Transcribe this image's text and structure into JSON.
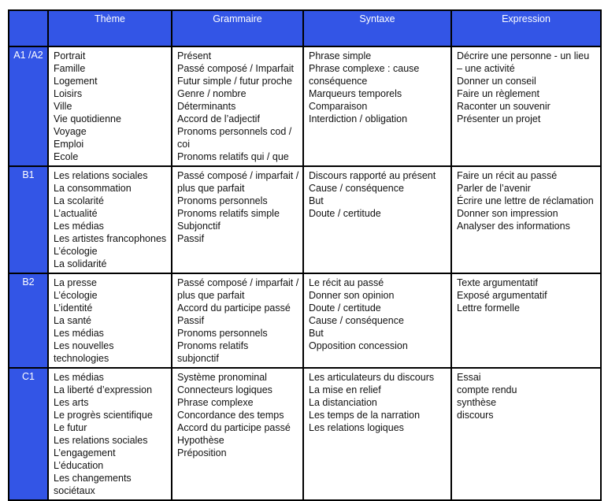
{
  "colors": {
    "accent_blue": "#3355e6",
    "border": "#000000",
    "header_text": "#ffffff",
    "body_text": "#111111"
  },
  "table": {
    "headers": {
      "level": "",
      "theme": "Thème",
      "grammaire": "Grammaire",
      "syntaxe": "Syntaxe",
      "expression": "Expression"
    },
    "rows": [
      {
        "level": "A1 /A2",
        "theme": [
          "Portrait",
          "Famille",
          "Logement",
          "Loisirs",
          "Ville",
          "Vie quotidienne",
          "Voyage",
          "Emploi",
          "Ecole"
        ],
        "grammaire": [
          "Présent",
          "Passé composé / Imparfait",
          "Futur simple / futur proche",
          "Genre / nombre",
          "Déterminants",
          "Accord de l’adjectif",
          "Pronoms personnels cod / coi",
          "Pronoms relatifs qui / que"
        ],
        "syntaxe": [
          "Phrase simple",
          "Phrase complexe : cause conséquence",
          "Marqueurs temporels",
          "Comparaison",
          "Interdiction / obligation"
        ],
        "expression": [
          "Décrire une personne  - un lieu – une activité",
          "Donner un conseil",
          "Faire un règlement",
          "Raconter un souvenir",
          "Présenter un projet"
        ]
      },
      {
        "level": "B1",
        "theme": [
          "Les relations sociales",
          "La consommation",
          "La scolarité",
          "L’actualité",
          "Les médias",
          "Les artistes francophones",
          "L’écologie",
          "La solidarité"
        ],
        "grammaire": [
          "Passé composé / imparfait / plus que parfait",
          "Pronoms personnels",
          "Pronoms relatifs simple",
          "Subjonctif",
          "Passif"
        ],
        "syntaxe": [
          "Discours rapporté au présent",
          "Cause / conséquence",
          "But",
          "Doute / certitude"
        ],
        "expression": [
          "Faire un récit au passé",
          "Parler de l’avenir",
          "Écrire une lettre de réclamation",
          "Donner son impression",
          "Analyser des informations"
        ]
      },
      {
        "level": "B2",
        "theme": [
          "La presse",
          "L’écologie",
          "L’identité",
          "La santé",
          "Les médias",
          "Les nouvelles technologies"
        ],
        "grammaire": [
          "Passé composé / imparfait / plus que parfait",
          "Accord du participe passé",
          "Passif",
          "Pronoms personnels",
          "Pronoms relatifs",
          "subjonctif"
        ],
        "syntaxe": [
          "Le récit au passé",
          "Donner son opinion",
          "Doute / certitude",
          "Cause / conséquence",
          "But",
          "Opposition concession"
        ],
        "expression": [
          "Texte argumentatif",
          "Exposé argumentatif",
          "Lettre formelle"
        ]
      },
      {
        "level": "C1",
        "theme": [
          "Les médias",
          "La liberté d’expression",
          "Les arts",
          "Le progrès scientifique",
          "Le futur",
          "Les relations sociales",
          "L’engagement",
          "L’éducation",
          "Les changements sociétaux"
        ],
        "grammaire": [
          "Système pronominal",
          "Connecteurs logiques",
          "Phrase complexe",
          "Concordance des temps",
          "Accord du participe passé",
          "Hypothèse",
          "Préposition"
        ],
        "syntaxe": [
          "Les articulateurs du discours",
          "La mise en relief",
          "La distanciation",
          "Les temps de la narration",
          "Les relations logiques"
        ],
        "expression": [
          "Essai",
          "compte rendu",
          "synthèse",
          "discours"
        ]
      }
    ]
  }
}
